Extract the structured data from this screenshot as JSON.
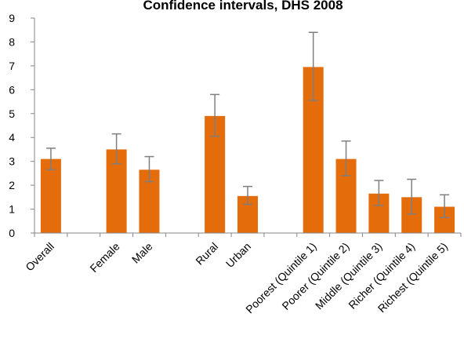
{
  "chart_data": {
    "type": "bar",
    "title": "Confidence intervals, DHS 2008",
    "xlabel": "",
    "ylabel": "",
    "ylim": [
      0,
      9
    ],
    "yticks": [
      0,
      1,
      2,
      3,
      4,
      5,
      6,
      7,
      8,
      9
    ],
    "grid": false,
    "legend": "none",
    "bar_color": "#E46C0A",
    "error_bar_color": "#7F7F7F",
    "slots": [
      "Overall",
      "",
      "Female",
      "Male",
      "",
      "Rural",
      "Urban",
      "",
      "Poorest (Quintile 1)",
      "Poorer (Quintile 2)",
      "Middle (Quintile 3)",
      "Richer (Quintile 4)",
      "Richest (Quintile 5)"
    ],
    "categories": [
      "Overall",
      "Female",
      "Male",
      "Rural",
      "Urban",
      "Poorest (Quintile 1)",
      "Poorer (Quintile 2)",
      "Middle (Quintile 3)",
      "Richer (Quintile 4)",
      "Richest (Quintile 5)"
    ],
    "values": [
      3.1,
      3.5,
      2.65,
      4.9,
      1.55,
      6.95,
      3.1,
      1.65,
      1.5,
      1.1
    ],
    "ci_low": [
      2.65,
      2.9,
      2.15,
      4.05,
      1.2,
      5.55,
      2.4,
      1.15,
      0.8,
      0.65
    ],
    "ci_high": [
      3.55,
      4.15,
      3.2,
      5.8,
      1.95,
      8.4,
      3.85,
      2.2,
      2.25,
      1.6
    ]
  }
}
